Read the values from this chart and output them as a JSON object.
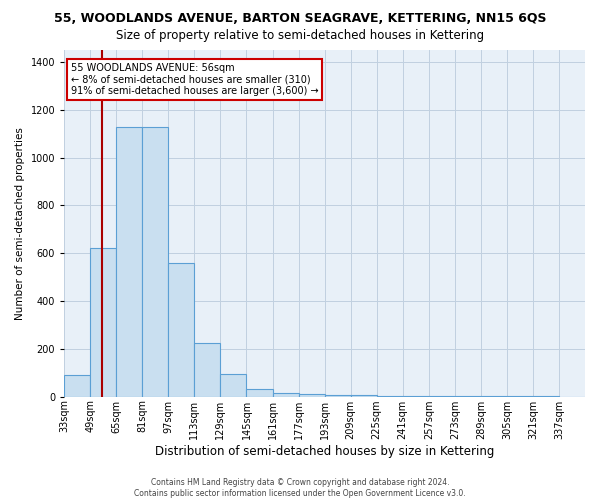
{
  "title": "55, WOODLANDS AVENUE, BARTON SEAGRAVE, KETTERING, NN15 6QS",
  "subtitle": "Size of property relative to semi-detached houses in Kettering",
  "xlabel": "Distribution of semi-detached houses by size in Kettering",
  "ylabel": "Number of semi-detached properties",
  "property_size": 56,
  "annotation_line1": "55 WOODLANDS AVENUE: 56sqm",
  "annotation_line2": "← 8% of semi-detached houses are smaller (310)",
  "annotation_line3": "91% of semi-detached houses are larger (3,600) →",
  "footer1": "Contains HM Land Registry data © Crown copyright and database right 2024.",
  "footer2": "Contains public sector information licensed under the Open Government Licence v3.0.",
  "bins": [
    33,
    49,
    65,
    81,
    97,
    113,
    129,
    145,
    161,
    177,
    193,
    209,
    225,
    241,
    257,
    273,
    289,
    305,
    321,
    337,
    353
  ],
  "counts": [
    90,
    620,
    1130,
    1130,
    560,
    225,
    95,
    30,
    15,
    10,
    8,
    5,
    4,
    3,
    2,
    2,
    1,
    1,
    1,
    0
  ],
  "bar_color": "#c9dff0",
  "bar_edge_color": "#5b9fd4",
  "line_color": "#aa0000",
  "annotation_box_edgecolor": "#cc0000",
  "grid_color": "#c0d0e0",
  "background_color": "#e8f0f8",
  "ylim": [
    0,
    1450
  ],
  "yticks": [
    0,
    200,
    400,
    600,
    800,
    1000,
    1200,
    1400
  ],
  "title_fontsize": 9,
  "subtitle_fontsize": 8.5,
  "ylabel_fontsize": 7.5,
  "xlabel_fontsize": 8.5,
  "tick_fontsize": 7,
  "annotation_fontsize": 7,
  "footer_fontsize": 5.5
}
